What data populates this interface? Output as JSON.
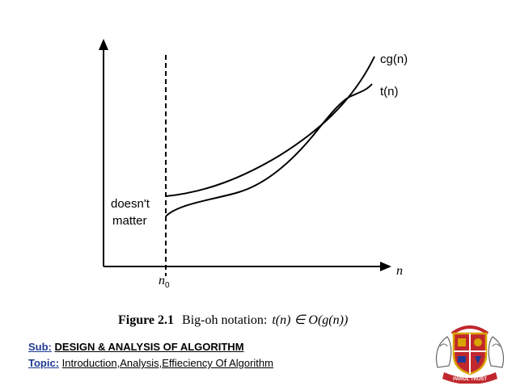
{
  "diagram": {
    "curve_labels": {
      "upper": "cg(n)",
      "lower": "t(n)"
    },
    "region_label": {
      "line1": "doesn't",
      "line2": "matter"
    },
    "x_axis_label": "n",
    "threshold_label_base": "n",
    "threshold_label_sub": "0"
  },
  "caption": {
    "figure": "Figure 2.1",
    "text": "Big-oh notation:",
    "math": "t(n) ∈ O(g(n))"
  },
  "footer": {
    "subject_key": "Sub:",
    "subject_value": "DESIGN & ANALYSIS OF ALGORITHM",
    "topic_key": "Topic:",
    "topic_value": "Introduction,Analysis,Effieciency Of Algorithm"
  },
  "logo": {
    "icon": "parul-university-crest-icon",
    "banner_text": "PARUL TRUST"
  },
  "colors": {
    "footer_key": "#1f3a93",
    "crest_red": "#c0282d",
    "crest_gold": "#d9a300",
    "crest_blue": "#1f3a93"
  }
}
